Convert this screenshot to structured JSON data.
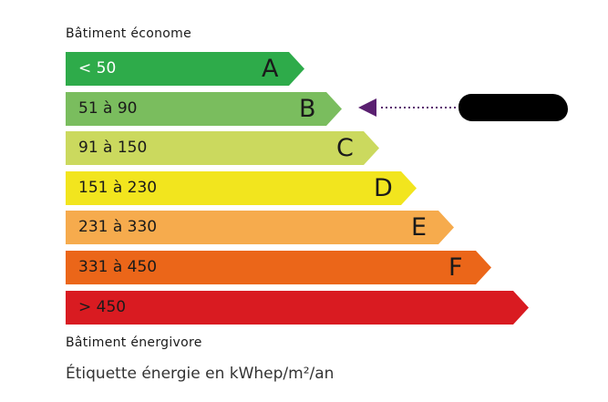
{
  "header_top": "Bâtiment économe",
  "header_bottom": "Bâtiment énergivore",
  "caption": "Étiquette énergie en kWhep/m²/an",
  "classes": [
    {
      "letter": "A",
      "range": "< 50",
      "color": "#2eab4a",
      "text_color": "#ffffff"
    },
    {
      "letter": "B",
      "range": "51 à 90",
      "color": "#7abd5e",
      "text_color": "#1a1a1a"
    },
    {
      "letter": "C",
      "range": "91 à 150",
      "color": "#cbd95e",
      "text_color": "#1a1a1a"
    },
    {
      "letter": "D",
      "range": "151 à 230",
      "color": "#f2e51e",
      "text_color": "#1a1a1a"
    },
    {
      "letter": "E",
      "range": "231 à 330",
      "color": "#f6ab4d",
      "text_color": "#1a1a1a"
    },
    {
      "letter": "F",
      "range": "331 à 450",
      "color": "#eb6619",
      "text_color": "#1a1a1a"
    },
    {
      "letter": "",
      "range": "> 450",
      "color": "#d91b21",
      "text_color": "#1a1a1a"
    }
  ],
  "indicator": {
    "class": "B",
    "color": "#5a2070",
    "value_redacted": true
  }
}
